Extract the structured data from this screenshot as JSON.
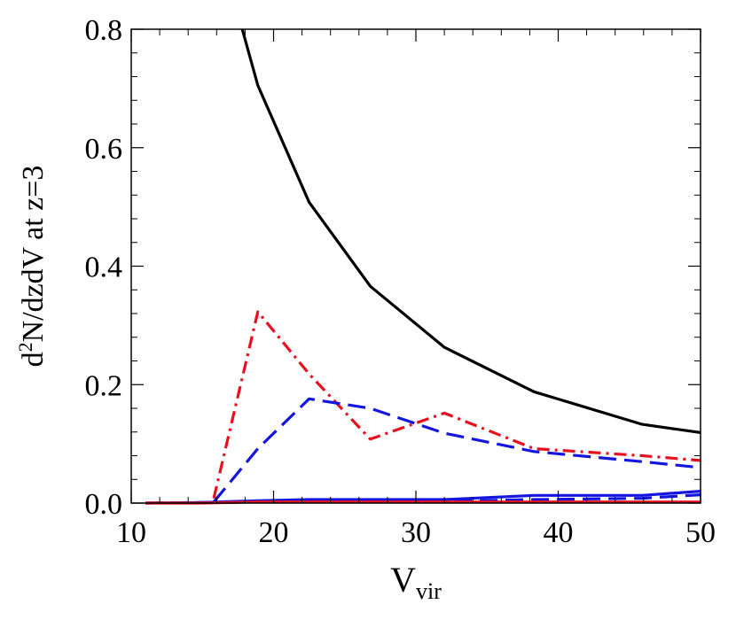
{
  "chart_data": {
    "type": "line",
    "title": "",
    "xlabel": {
      "main": "V",
      "sub": "vir"
    },
    "ylabel": {
      "prefix": "d",
      "sup": "2",
      "rest": "N/dzdV at z=3"
    },
    "xlim": [
      10,
      50
    ],
    "ylim": [
      0,
      0.8
    ],
    "x_ticks": [
      10,
      20,
      30,
      40,
      50
    ],
    "x_tick_labels": [
      "10",
      "20",
      "30",
      "40",
      "50"
    ],
    "y_ticks": [
      0.0,
      0.2,
      0.4,
      0.6,
      0.8
    ],
    "y_tick_labels": [
      "0.0",
      "0.2",
      "0.4",
      "0.6",
      "0.8"
    ],
    "grid": false,
    "legend": "none",
    "series": [
      {
        "color": "#000000",
        "style": "solid",
        "x": [
          17.8,
          18.9,
          22.5,
          26.8,
          32.0,
          38.3,
          45.9,
          50.0
        ],
        "y": [
          0.8,
          0.705,
          0.508,
          0.366,
          0.263,
          0.188,
          0.133,
          0.119
        ]
      },
      {
        "color": "#e8101e",
        "style": "dashdot",
        "x": [
          15.8,
          18.9,
          22.5,
          26.8,
          32.0,
          38.3,
          45.9,
          50.0
        ],
        "y": [
          0.008,
          0.323,
          0.218,
          0.108,
          0.152,
          0.092,
          0.08,
          0.072
        ]
      },
      {
        "color": "#1416e0",
        "style": "dashed",
        "x": [
          15.8,
          18.9,
          22.5,
          26.8,
          32.0,
          38.3,
          45.9,
          50.0
        ],
        "y": [
          0.002,
          0.092,
          0.176,
          0.16,
          0.118,
          0.087,
          0.07,
          0.06
        ]
      },
      {
        "color": "#1416e0",
        "style": "solid",
        "x": [
          11.0,
          15.0,
          18.9,
          22.5,
          26.8,
          32.0,
          38.3,
          45.9,
          50.0
        ],
        "y": [
          0.0,
          0.001,
          0.004,
          0.006,
          0.006,
          0.006,
          0.013,
          0.013,
          0.02
        ]
      },
      {
        "color": "#1416e0",
        "style": "dashed",
        "x": [
          11.0,
          15.0,
          18.9,
          22.5,
          26.8,
          32.0,
          38.3,
          45.9,
          50.0
        ],
        "y": [
          0.0,
          0.001,
          0.002,
          0.003,
          0.003,
          0.003,
          0.006,
          0.008,
          0.014
        ]
      },
      {
        "color": "#e8101e",
        "style": "solid",
        "x": [
          11.0,
          15.0,
          18.9,
          22.5,
          26.8,
          32.0,
          38.3,
          45.9,
          50.0
        ],
        "y": [
          0.0,
          0.0,
          0.002,
          0.002,
          0.002,
          0.002,
          0.002,
          0.002,
          0.002
        ]
      }
    ]
  }
}
